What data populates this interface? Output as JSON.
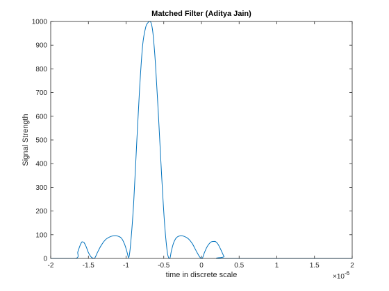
{
  "chart_data": {
    "type": "line",
    "title": "Matched Filter (Aditya Jain)",
    "xlabel": "time in discrete scale",
    "ylabel": "Signal Strength",
    "x_exponent_label": "×10",
    "x_exponent_power": "-6",
    "xlim": [
      -2e-06,
      2e-06
    ],
    "ylim": [
      0,
      1000
    ],
    "x_ticks": [
      -2e-06,
      -1.5e-06,
      -1e-06,
      -5e-07,
      0,
      5e-07,
      1e-06,
      1.5e-06,
      2e-06
    ],
    "x_tick_labels": [
      "-2",
      "-1.5",
      "-1",
      "-0.5",
      "0",
      "0.5",
      "1",
      "1.5",
      "2"
    ],
    "y_ticks": [
      0,
      100,
      200,
      300,
      400,
      500,
      600,
      700,
      800,
      900,
      1000
    ],
    "y_tick_labels": [
      "0",
      "100",
      "200",
      "300",
      "400",
      "500",
      "600",
      "700",
      "800",
      "900",
      "1000"
    ],
    "grid": false,
    "box": true,
    "line_color": "#0072BD",
    "series": [
      {
        "x": [
          -2e-06,
          -1.67e-06,
          -1.64e-06,
          -1.61e-06,
          -1.585e-06,
          -1.56e-06,
          -1.53e-06,
          -1.5e-06,
          -1.46e-06,
          -1.42e-06,
          -1.38e-06,
          -1.33e-06,
          -1.27e-06,
          -1.2e-06,
          -1.14e-06,
          -1.1e-06,
          -1.06e-06,
          -1.02e-06,
          -9.9e-07,
          -9.65e-07,
          -9.4e-07,
          -9e-07,
          -8.6e-07,
          -8.2e-07,
          -7.8e-07,
          -7.4e-07,
          -7.1e-07,
          -6.9e-07,
          -6.75e-07,
          -6.6e-07,
          -6.4e-07,
          -6.1e-07,
          -5.7e-07,
          -5.3e-07,
          -4.9e-07,
          -4.5e-07,
          -4.2e-07,
          -4e-07,
          -3.7e-07,
          -3.3e-07,
          -2.7e-07,
          -2.2e-07,
          -1.7e-07,
          -1.2e-07,
          -7e-08,
          -2e-08,
          1e-08,
          4e-08,
          8e-08,
          1.3e-07,
          1.8e-07,
          2.2e-07,
          2.6e-07,
          3e-07,
          3.3e-07,
          2e-06
        ],
        "y": [
          0,
          0,
          28,
          55,
          70,
          68,
          50,
          25,
          5,
          0,
          25,
          55,
          80,
          93,
          96,
          93,
          85,
          60,
          30,
          3,
          60,
          230,
          480,
          720,
          900,
          975,
          995,
          1000,
          998,
          985,
          940,
          820,
          600,
          360,
          150,
          20,
          0,
          30,
          65,
          88,
          96,
          92,
          82,
          62,
          32,
          5,
          0,
          25,
          52,
          70,
          72,
          60,
          35,
          8,
          0,
          0
        ]
      }
    ]
  }
}
